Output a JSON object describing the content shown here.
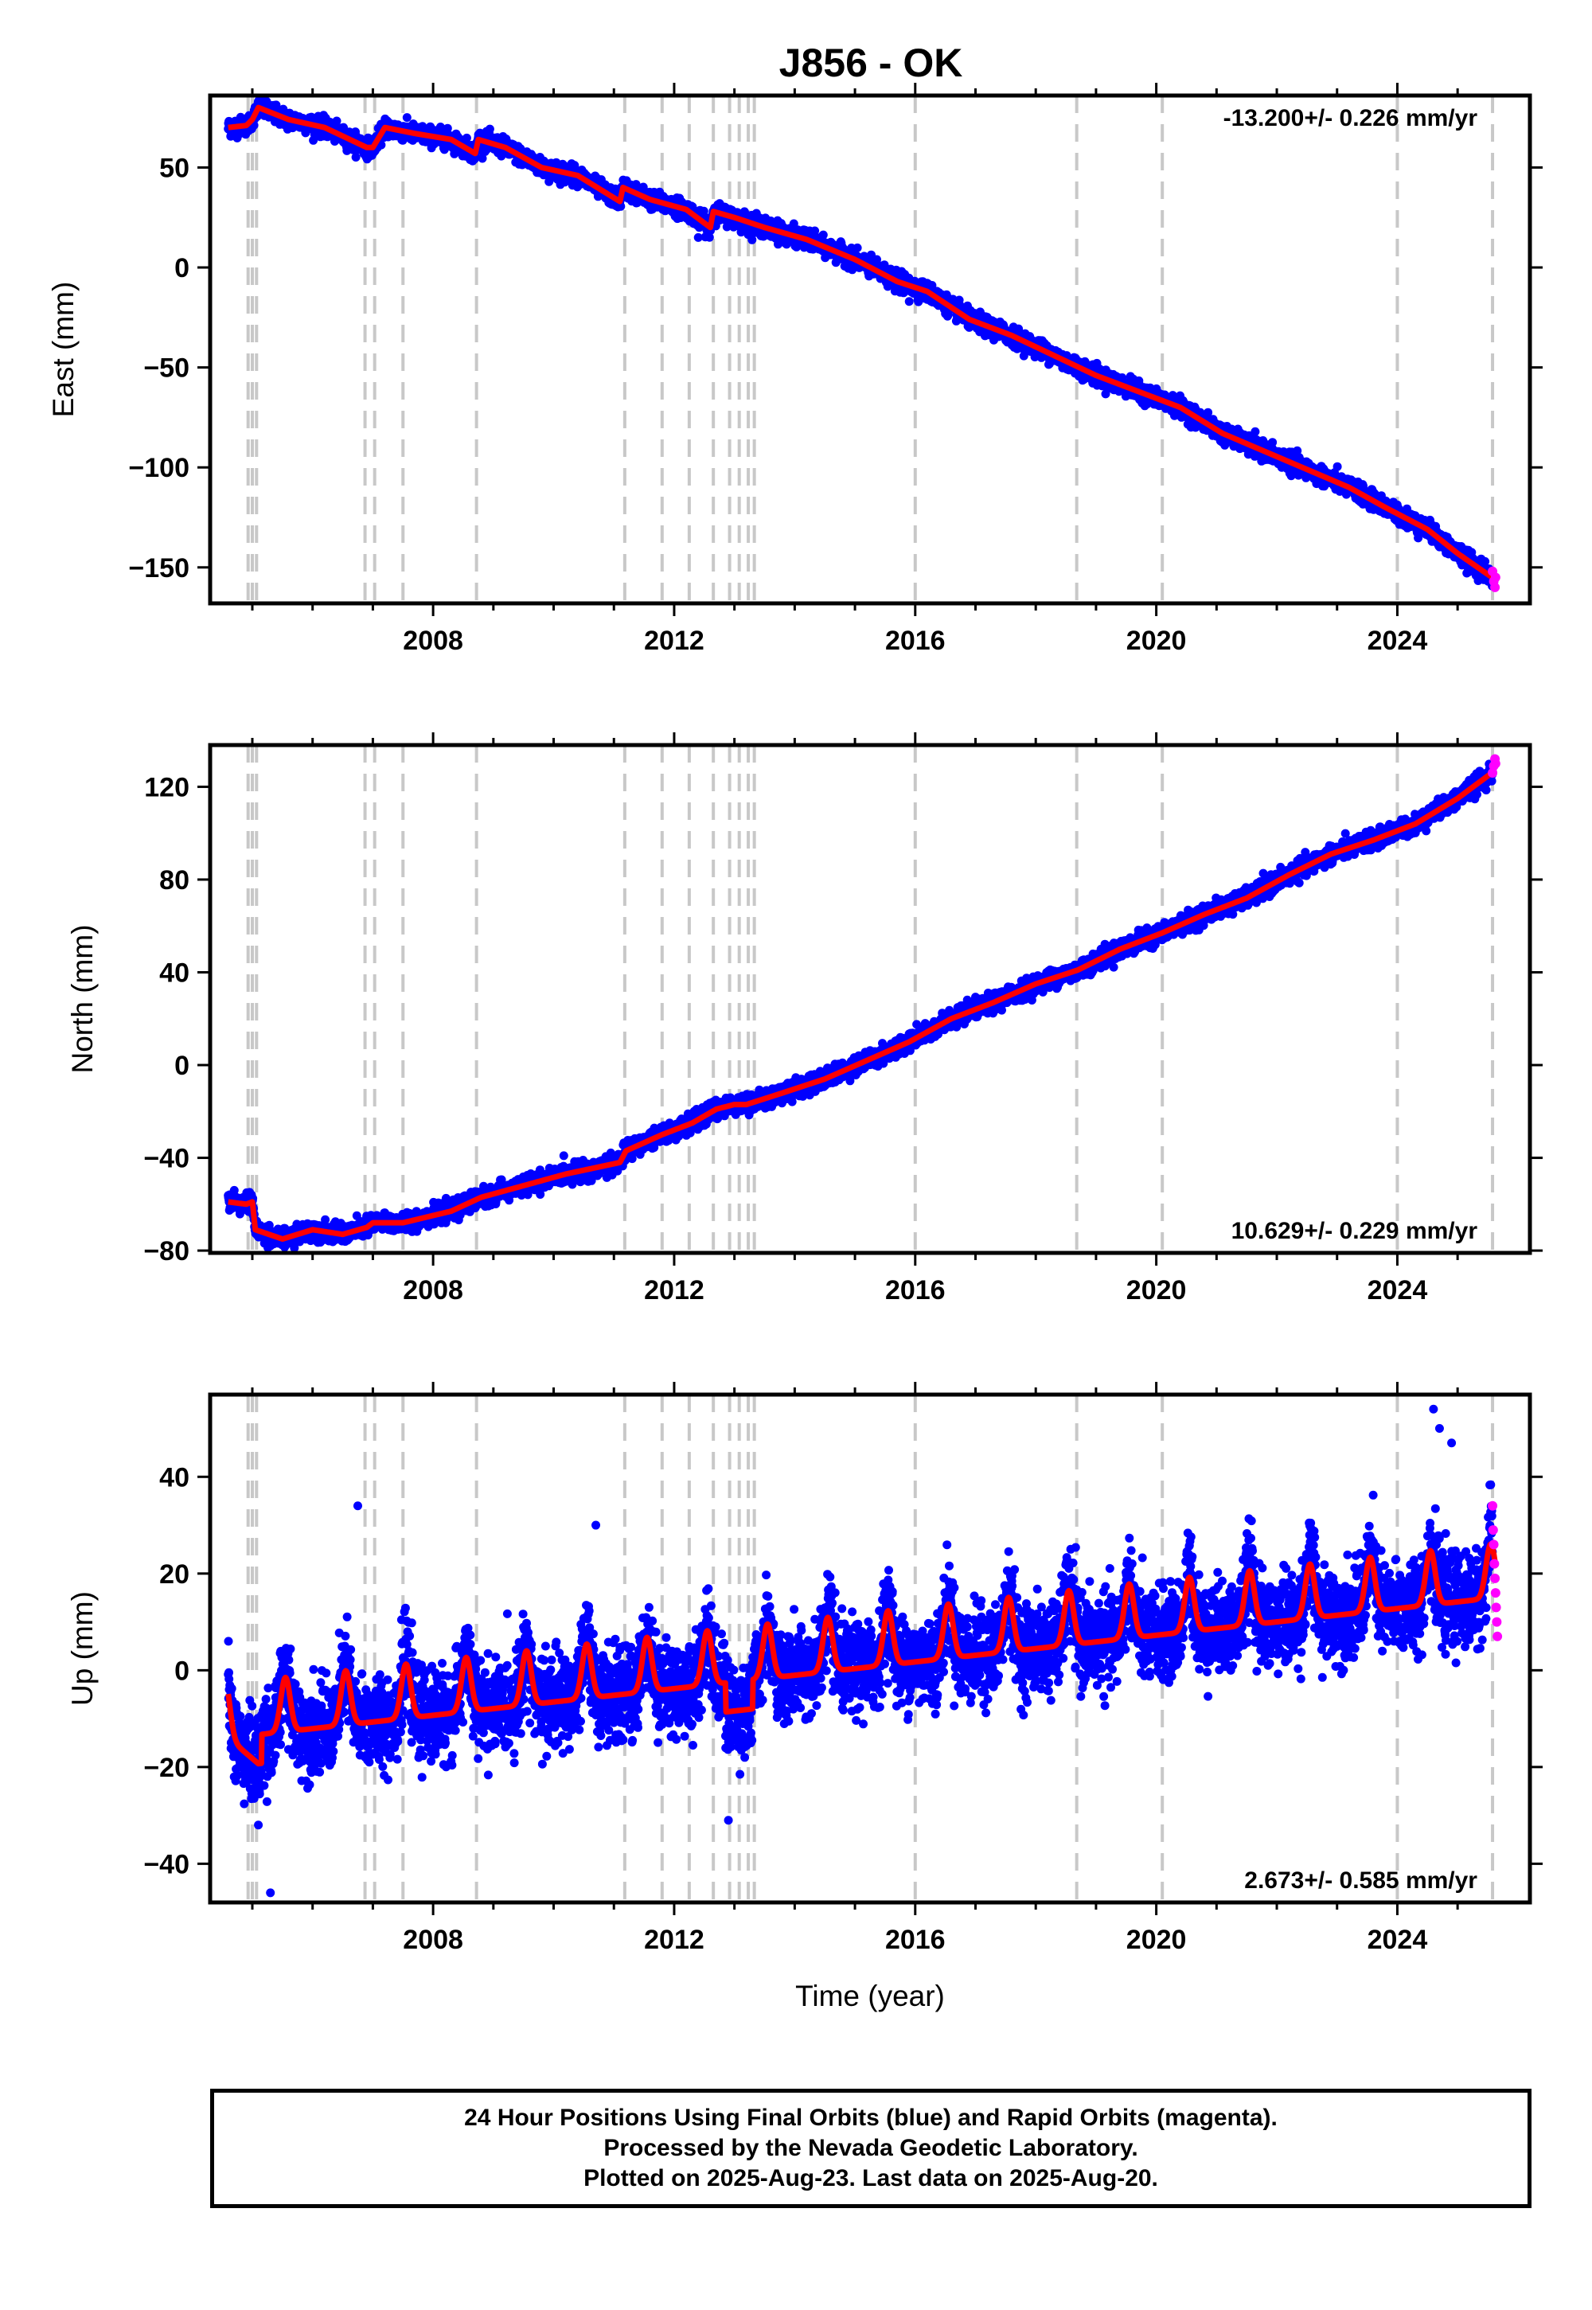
{
  "title": "J856 - OK",
  "footer": {
    "line1": "24 Hour Positions Using Final Orbits (blue) and Rapid Orbits (magenta).",
    "line2": "Processed by the Nevada Geodetic Laboratory.",
    "line3": "Plotted on 2025-Aug-23. Last data on 2025-Aug-20."
  },
  "colors": {
    "final": "#0000ff",
    "rapid": "#ff00ff",
    "model": "#ff0000",
    "events": "#c8c8c8"
  },
  "chart_data": [
    {
      "type": "scatter",
      "ylabel": "East (mm)",
      "xlabel": "",
      "xlim": [
        2004.3,
        2026.2
      ],
      "ylim": [
        -168,
        86
      ],
      "xticks": [
        2008,
        2012,
        2016,
        2020,
        2024
      ],
      "yticks": [
        50,
        0,
        -50,
        -100,
        -150
      ],
      "ytick_labels": [
        "50",
        "0",
        "−50",
        "−100",
        "−150"
      ],
      "rate": "-13.200+/- 0.226 mm/yr",
      "rate_position": "top-right",
      "model": {
        "name": "model",
        "x": [
          2004.6,
          2004.9,
          2005.0,
          2005.1,
          2005.6,
          2006.2,
          2006.9,
          2007.0,
          2007.2,
          2007.7,
          2008.3,
          2008.7,
          2008.75,
          2009.2,
          2009.8,
          2010.4,
          2011.1,
          2011.15,
          2011.6,
          2012.2,
          2012.6,
          2012.65,
          2013.0,
          2013.5,
          2014.2,
          2015.0,
          2015.7,
          2016.2,
          2016.9,
          2017.6,
          2018.3,
          2019.0,
          2019.7,
          2020.4,
          2021.1,
          2021.8,
          2022.5,
          2023.2,
          2023.8,
          2024.5,
          2025.0,
          2025.62
        ],
        "y": [
          70,
          71,
          74,
          80,
          74,
          70,
          60,
          60,
          70,
          67,
          64,
          57,
          64,
          60,
          50,
          46,
          33,
          40,
          34,
          29,
          20,
          28,
          25,
          20,
          14,
          4,
          -7,
          -12,
          -26,
          -34,
          -44,
          -54,
          -62,
          -70,
          -83,
          -92,
          -101,
          -110,
          -120,
          -131,
          -143,
          -156
        ]
      },
      "final": {
        "name": "final",
        "count": 5200,
        "x_range": [
          2004.6,
          2025.58
        ],
        "scatter_mm": 2.2,
        "outliers": [
          [
            2015.9,
            -17
          ],
          [
            2012.4,
            15
          ]
        ]
      },
      "rapid": {
        "name": "rapid",
        "x": [
          2025.58,
          2025.6,
          2025.62,
          2025.63
        ],
        "y": [
          -152,
          -157,
          -160,
          -155
        ]
      }
    },
    {
      "type": "scatter",
      "ylabel": "North (mm)",
      "xlabel": "",
      "xlim": [
        2004.3,
        2026.2
      ],
      "ylim": [
        -81,
        138
      ],
      "xticks": [
        2008,
        2012,
        2016,
        2020,
        2024
      ],
      "yticks": [
        120,
        80,
        40,
        0,
        -40,
        -80
      ],
      "ytick_labels": [
        "120",
        "80",
        "40",
        "0",
        "−40",
        "−80"
      ],
      "rate": "10.629+/- 0.229 mm/yr",
      "rate_position": "bottom-right",
      "model": {
        "name": "model",
        "x": [
          2004.6,
          2004.9,
          2005.0,
          2005.05,
          2005.5,
          2006.0,
          2006.5,
          2006.9,
          2007.0,
          2007.5,
          2008.3,
          2008.8,
          2009.5,
          2010.2,
          2011.1,
          2011.2,
          2011.8,
          2012.3,
          2012.7,
          2013.0,
          2013.2,
          2013.8,
          2014.5,
          2015.2,
          2015.9,
          2016.6,
          2017.3,
          2018.0,
          2018.7,
          2019.4,
          2020.1,
          2020.8,
          2021.5,
          2022.2,
          2022.9,
          2023.6,
          2024.3,
          2025.0,
          2025.62
        ],
        "y": [
          -59,
          -60,
          -59,
          -71,
          -75,
          -71,
          -73,
          -70,
          -68,
          -68,
          -63,
          -57,
          -52,
          -47,
          -42,
          -37,
          -30,
          -25,
          -19,
          -17,
          -17,
          -12,
          -6,
          2,
          10,
          20,
          27,
          35,
          41,
          50,
          57,
          65,
          72,
          82,
          91,
          97,
          104,
          115,
          127
        ]
      },
      "final": {
        "name": "final",
        "count": 5200,
        "x_range": [
          2004.6,
          2025.58
        ],
        "scatter_mm": 1.9,
        "outliers": [
          [
            2004.7,
            -54
          ],
          [
            2005.3,
            -78
          ]
        ]
      },
      "rapid": {
        "name": "rapid",
        "x": [
          2025.58,
          2025.6,
          2025.62,
          2025.63
        ],
        "y": [
          126,
          129,
          132,
          130
        ]
      }
    },
    {
      "type": "scatter",
      "ylabel": "Up (mm)",
      "xlabel": "Time (year)",
      "xlim": [
        2004.3,
        2026.2
      ],
      "ylim": [
        -48,
        57
      ],
      "xticks": [
        2008,
        2012,
        2016,
        2020,
        2024
      ],
      "yticks": [
        40,
        20,
        0,
        -20,
        -40
      ],
      "ytick_labels": [
        "40",
        "20",
        "0",
        "−20",
        "−40"
      ],
      "rate": "2.673+/- 0.585 mm/yr",
      "rate_position": "bottom-right",
      "model": {
        "name": "model",
        "trend_start": -11,
        "trend_end": 18,
        "x_range": [
          2004.6,
          2025.62
        ],
        "seasonal_amplitude": 7,
        "offset_2005": -6,
        "dip_2013": -6
      },
      "final": {
        "name": "final",
        "count": 6400,
        "x_range": [
          2004.6,
          2025.58
        ],
        "scatter_mm": 4.5,
        "outliers": [
          [
            2006.75,
            34
          ],
          [
            2010.7,
            30
          ],
          [
            2005.3,
            -46
          ],
          [
            2024.6,
            54
          ],
          [
            2024.7,
            50
          ],
          [
            2024.9,
            47
          ],
          [
            2012.9,
            -31
          ],
          [
            2005.1,
            -32
          ]
        ]
      },
      "rapid": {
        "name": "rapid",
        "x": [
          2025.58,
          2025.59,
          2025.6,
          2025.61,
          2025.62,
          2025.63,
          2025.64,
          2025.65,
          2025.66
        ],
        "y": [
          34,
          29,
          26,
          22,
          19,
          16,
          13,
          10,
          7
        ]
      }
    }
  ],
  "event_years": [
    2004.93,
    2005.0,
    2005.07,
    2006.87,
    2007.03,
    2007.5,
    2008.72,
    2011.18,
    2011.8,
    2012.25,
    2012.65,
    2012.92,
    2013.08,
    2013.23,
    2013.33,
    2016.0,
    2018.68,
    2020.1,
    2024.0,
    2025.58
  ]
}
